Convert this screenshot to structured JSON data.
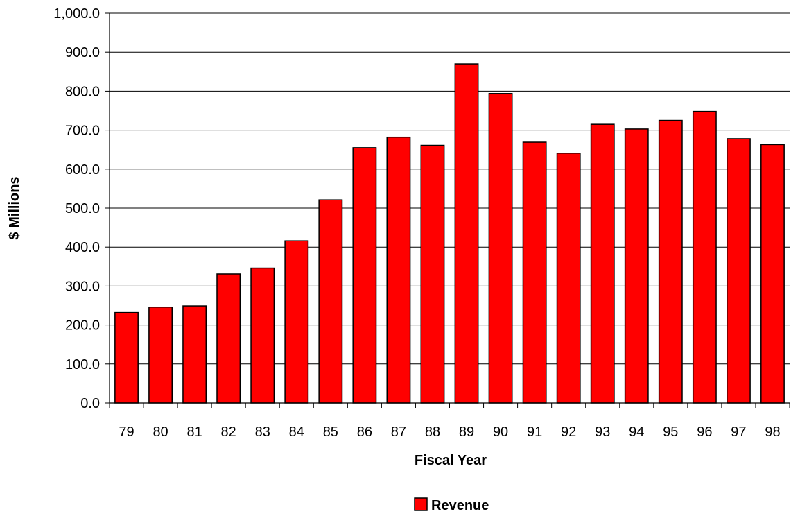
{
  "chart_data": {
    "type": "bar",
    "xlabel": "Fiscal Year",
    "ylabel": "$ Millions",
    "categories": [
      "79",
      "80",
      "81",
      "82",
      "83",
      "84",
      "85",
      "86",
      "87",
      "88",
      "89",
      "90",
      "91",
      "92",
      "93",
      "94",
      "95",
      "96",
      "97",
      "98"
    ],
    "series": [
      {
        "name": "Revenue",
        "color": "#ff0000",
        "values": [
          232,
          246,
          249,
          331,
          346,
          416,
          521,
          655,
          682,
          661,
          870,
          794,
          669,
          641,
          715,
          703,
          725,
          748,
          678,
          663
        ]
      }
    ],
    "ylim": [
      0,
      1000
    ],
    "yticks": [
      "0.0",
      "100.0",
      "200.0",
      "300.0",
      "400.0",
      "500.0",
      "600.0",
      "700.0",
      "800.0",
      "900.0",
      "1,000.0"
    ],
    "grid": true,
    "legend_position": "bottom"
  }
}
